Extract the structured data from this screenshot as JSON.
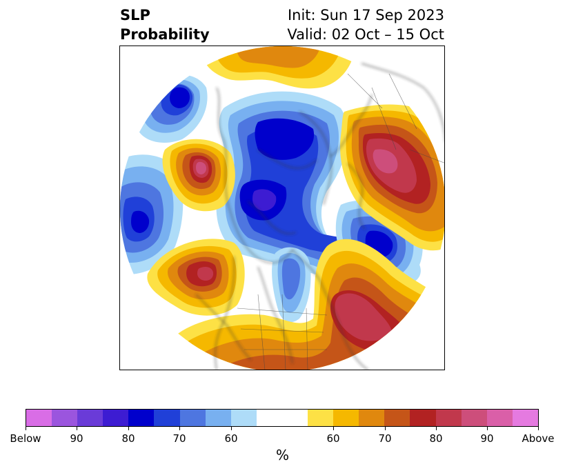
{
  "title": {
    "left_line1": "SLP",
    "left_line2": "Probability",
    "right_line1": "Init: Sun 17 Sep 2023",
    "right_line2": "Valid: 02 Oct – 15 Oct"
  },
  "map": {
    "projection": "north-polar-stereographic",
    "coastline_color": "#333333"
  },
  "colorbar": {
    "unit": "%",
    "colors": [
      "#d96de6",
      "#9b55de",
      "#6a3bd8",
      "#3d1cd2",
      "#0000cc",
      "#2040d8",
      "#4e76e0",
      "#78b0f0",
      "#aedcf8",
      "#ffffff",
      "#ffffff",
      "#fde145",
      "#f5b800",
      "#e0880e",
      "#c55518",
      "#b22222",
      "#c1384c",
      "#cd4e7b",
      "#da5fa8",
      "#e57ae0"
    ],
    "tick_labels": [
      "Below",
      "90",
      "80",
      "70",
      "60",
      "60",
      "70",
      "80",
      "90",
      "Above"
    ]
  }
}
